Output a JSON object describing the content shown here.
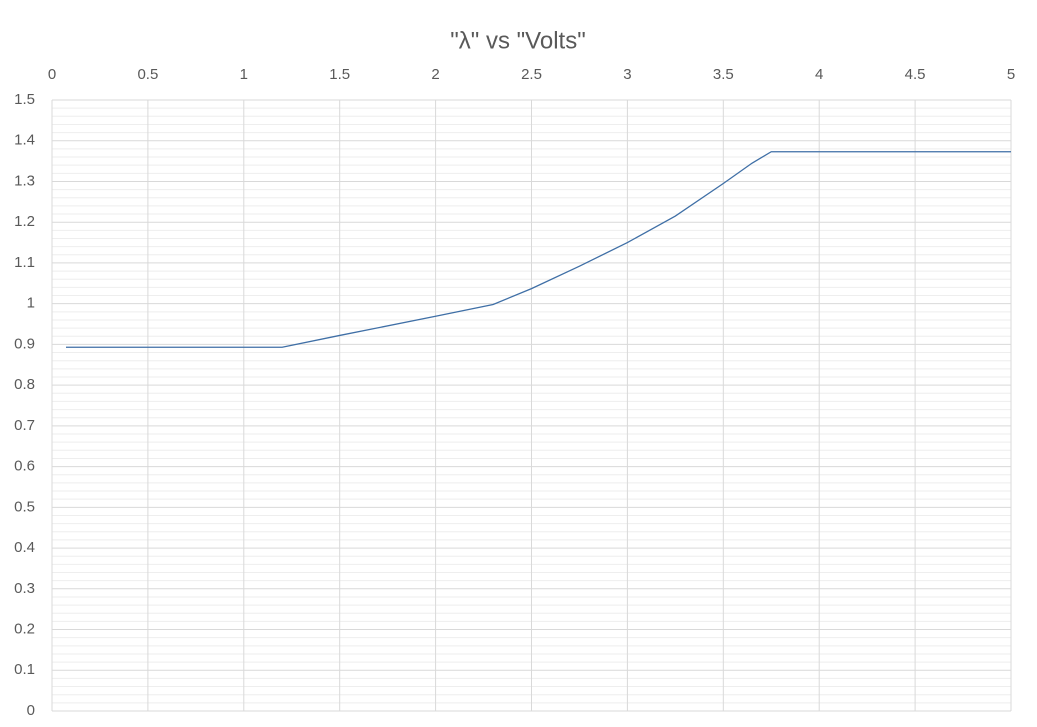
{
  "chart_data": {
    "type": "line",
    "title": "\"λ\" vs \"Volts\"",
    "x": [
      0.073,
      1.2,
      1.5,
      2.0,
      2.3,
      2.5,
      2.75,
      3.0,
      3.25,
      3.5,
      3.65,
      3.75,
      3.8,
      5
    ],
    "series": [
      {
        "color": "#3f6fa6",
        "values": [
          0.893,
          0.893,
          0.922,
          0.969,
          0.998,
          1.037,
          1.092,
          1.15,
          1.215,
          1.295,
          1.345,
          1.373,
          1.373,
          1.373
        ]
      }
    ],
    "xlim": [
      0,
      5
    ],
    "xticks": [
      0,
      0.5,
      1,
      1.5,
      2,
      2.5,
      3,
      3.5,
      4,
      4.5,
      5
    ],
    "ylim": [
      0,
      1.5
    ],
    "yticks": [
      0,
      0.1,
      0.2,
      0.3,
      0.4,
      0.5,
      0.6,
      0.7,
      0.8,
      0.9,
      1,
      1.1,
      1.2,
      1.3,
      1.4,
      1.5
    ],
    "grid": true,
    "minor_grid": true,
    "x_axis_position": "top"
  }
}
